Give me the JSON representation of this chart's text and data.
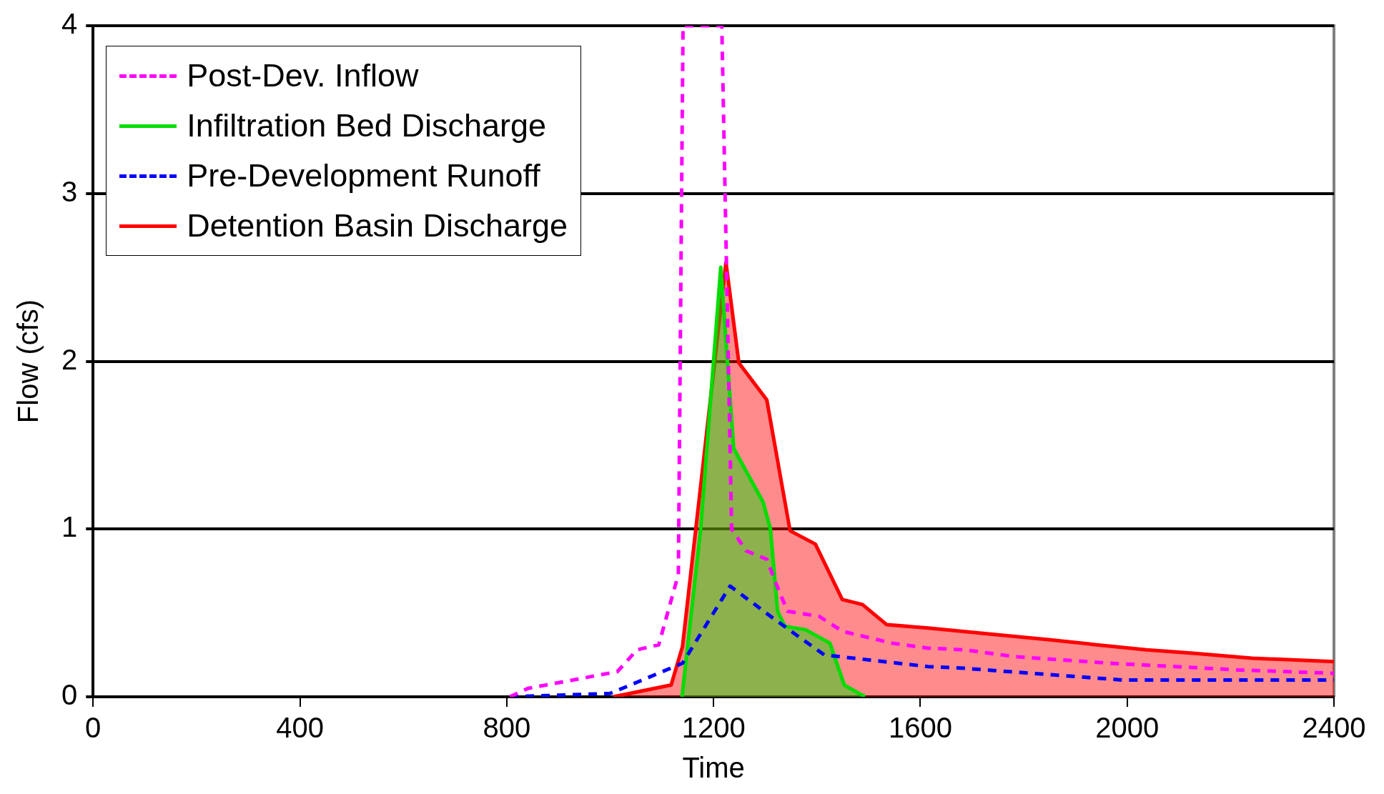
{
  "chart_data": {
    "type": "line",
    "xlabel": "Time",
    "ylabel": "Flow (cfs)",
    "xlim": [
      0,
      2400
    ],
    "xticks": [
      0,
      400,
      800,
      1200,
      1600,
      2000,
      2400
    ],
    "ylim": [
      0,
      4
    ],
    "yticks": [
      0,
      1,
      2,
      3,
      4
    ],
    "grid": "y",
    "legend": "top left",
    "series": [
      {
        "name": "Post-Dev. Inflow",
        "type": "line",
        "line_style": "dashed",
        "color": "#ff00ff",
        "x": [
          806,
          841,
          1014,
          1052,
          1094,
          1132,
          1141,
          1216,
          1235,
          1263,
          1303,
          1319,
          1343,
          1404,
          1450,
          1545,
          1615,
          1685,
          1781,
          1967,
          2218,
          2400
        ],
        "values": [
          0,
          0.05,
          0.15,
          0.28,
          0.31,
          0.73,
          4,
          4,
          1.0,
          0.87,
          0.82,
          0.69,
          0.51,
          0.48,
          0.39,
          0.32,
          0.29,
          0.28,
          0.24,
          0.2,
          0.16,
          0.14
        ]
      },
      {
        "name": "Infiltration Bed Discharge",
        "type": "area",
        "color": "#00dd00",
        "x": [
          1139,
          1175,
          1214,
          1239,
          1296,
          1310,
          1324,
          1338,
          1378,
          1425,
          1453,
          1493
        ],
        "values": [
          0,
          1.0,
          2.56,
          1.48,
          1.16,
          1.0,
          0.51,
          0.42,
          0.4,
          0.32,
          0.07,
          0
        ]
      },
      {
        "name": "Pre-Development Runoff",
        "type": "line",
        "line_style": "dashed",
        "color": "#0000ff",
        "x": [
          806,
          1000,
          1140,
          1232,
          1319,
          1414,
          1615,
          1685,
          1992,
          2400
        ],
        "values": [
          0,
          0.02,
          0.2,
          0.66,
          0.46,
          0.25,
          0.18,
          0.17,
          0.1,
          0.1
        ]
      },
      {
        "name": "Detention Basin Discharge",
        "type": "area",
        "color": "#ff0000",
        "x": [
          1006,
          1118,
          1140,
          1224,
          1249,
          1303,
          1348,
          1397,
          1449,
          1488,
          1535,
          1615,
          1750,
          1851,
          1941,
          2037,
          2127,
          2242,
          2400
        ],
        "values": [
          0,
          0.07,
          0.3,
          2.59,
          1.99,
          1.77,
          0.99,
          0.91,
          0.58,
          0.55,
          0.43,
          0.41,
          0.37,
          0.34,
          0.31,
          0.28,
          0.26,
          0.23,
          0.21
        ]
      }
    ]
  }
}
